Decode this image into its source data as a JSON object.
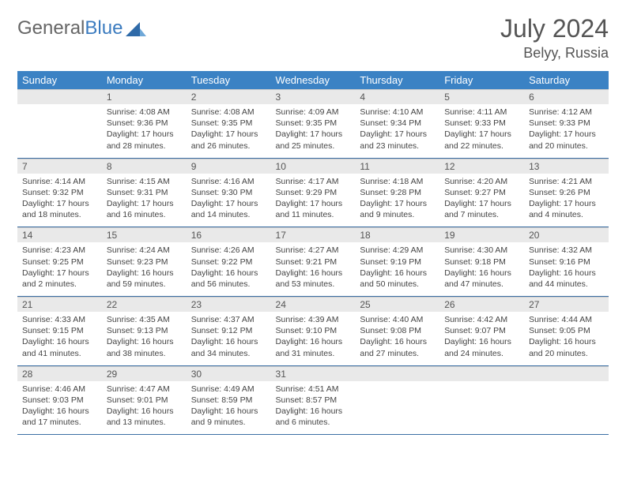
{
  "logo": {
    "text_general": "General",
    "text_blue": "Blue"
  },
  "header": {
    "month_title": "July 2024",
    "location": "Belyy, Russia"
  },
  "colors": {
    "header_bg": "#3b82c4",
    "header_text": "#ffffff",
    "daynum_bg": "#e9e9e9",
    "daynum_text": "#555555",
    "body_text": "#444444",
    "rule": "#3b6fa5",
    "logo_general": "#666666",
    "logo_blue": "#3b7bbf",
    "title_text": "#555555"
  },
  "day_names": [
    "Sunday",
    "Monday",
    "Tuesday",
    "Wednesday",
    "Thursday",
    "Friday",
    "Saturday"
  ],
  "layout": {
    "first_weekday_index": 1,
    "days_in_month": 31,
    "columns": 7,
    "rows": 5
  },
  "days": [
    {
      "n": 1,
      "sunrise": "4:08 AM",
      "sunset": "9:36 PM",
      "daylight": "17 hours and 28 minutes."
    },
    {
      "n": 2,
      "sunrise": "4:08 AM",
      "sunset": "9:35 PM",
      "daylight": "17 hours and 26 minutes."
    },
    {
      "n": 3,
      "sunrise": "4:09 AM",
      "sunset": "9:35 PM",
      "daylight": "17 hours and 25 minutes."
    },
    {
      "n": 4,
      "sunrise": "4:10 AM",
      "sunset": "9:34 PM",
      "daylight": "17 hours and 23 minutes."
    },
    {
      "n": 5,
      "sunrise": "4:11 AM",
      "sunset": "9:33 PM",
      "daylight": "17 hours and 22 minutes."
    },
    {
      "n": 6,
      "sunrise": "4:12 AM",
      "sunset": "9:33 PM",
      "daylight": "17 hours and 20 minutes."
    },
    {
      "n": 7,
      "sunrise": "4:14 AM",
      "sunset": "9:32 PM",
      "daylight": "17 hours and 18 minutes."
    },
    {
      "n": 8,
      "sunrise": "4:15 AM",
      "sunset": "9:31 PM",
      "daylight": "17 hours and 16 minutes."
    },
    {
      "n": 9,
      "sunrise": "4:16 AM",
      "sunset": "9:30 PM",
      "daylight": "17 hours and 14 minutes."
    },
    {
      "n": 10,
      "sunrise": "4:17 AM",
      "sunset": "9:29 PM",
      "daylight": "17 hours and 11 minutes."
    },
    {
      "n": 11,
      "sunrise": "4:18 AM",
      "sunset": "9:28 PM",
      "daylight": "17 hours and 9 minutes."
    },
    {
      "n": 12,
      "sunrise": "4:20 AM",
      "sunset": "9:27 PM",
      "daylight": "17 hours and 7 minutes."
    },
    {
      "n": 13,
      "sunrise": "4:21 AM",
      "sunset": "9:26 PM",
      "daylight": "17 hours and 4 minutes."
    },
    {
      "n": 14,
      "sunrise": "4:23 AM",
      "sunset": "9:25 PM",
      "daylight": "17 hours and 2 minutes."
    },
    {
      "n": 15,
      "sunrise": "4:24 AM",
      "sunset": "9:23 PM",
      "daylight": "16 hours and 59 minutes."
    },
    {
      "n": 16,
      "sunrise": "4:26 AM",
      "sunset": "9:22 PM",
      "daylight": "16 hours and 56 minutes."
    },
    {
      "n": 17,
      "sunrise": "4:27 AM",
      "sunset": "9:21 PM",
      "daylight": "16 hours and 53 minutes."
    },
    {
      "n": 18,
      "sunrise": "4:29 AM",
      "sunset": "9:19 PM",
      "daylight": "16 hours and 50 minutes."
    },
    {
      "n": 19,
      "sunrise": "4:30 AM",
      "sunset": "9:18 PM",
      "daylight": "16 hours and 47 minutes."
    },
    {
      "n": 20,
      "sunrise": "4:32 AM",
      "sunset": "9:16 PM",
      "daylight": "16 hours and 44 minutes."
    },
    {
      "n": 21,
      "sunrise": "4:33 AM",
      "sunset": "9:15 PM",
      "daylight": "16 hours and 41 minutes."
    },
    {
      "n": 22,
      "sunrise": "4:35 AM",
      "sunset": "9:13 PM",
      "daylight": "16 hours and 38 minutes."
    },
    {
      "n": 23,
      "sunrise": "4:37 AM",
      "sunset": "9:12 PM",
      "daylight": "16 hours and 34 minutes."
    },
    {
      "n": 24,
      "sunrise": "4:39 AM",
      "sunset": "9:10 PM",
      "daylight": "16 hours and 31 minutes."
    },
    {
      "n": 25,
      "sunrise": "4:40 AM",
      "sunset": "9:08 PM",
      "daylight": "16 hours and 27 minutes."
    },
    {
      "n": 26,
      "sunrise": "4:42 AM",
      "sunset": "9:07 PM",
      "daylight": "16 hours and 24 minutes."
    },
    {
      "n": 27,
      "sunrise": "4:44 AM",
      "sunset": "9:05 PM",
      "daylight": "16 hours and 20 minutes."
    },
    {
      "n": 28,
      "sunrise": "4:46 AM",
      "sunset": "9:03 PM",
      "daylight": "16 hours and 17 minutes."
    },
    {
      "n": 29,
      "sunrise": "4:47 AM",
      "sunset": "9:01 PM",
      "daylight": "16 hours and 13 minutes."
    },
    {
      "n": 30,
      "sunrise": "4:49 AM",
      "sunset": "8:59 PM",
      "daylight": "16 hours and 9 minutes."
    },
    {
      "n": 31,
      "sunrise": "4:51 AM",
      "sunset": "8:57 PM",
      "daylight": "16 hours and 6 minutes."
    }
  ],
  "labels": {
    "sunrise": "Sunrise:",
    "sunset": "Sunset:",
    "daylight": "Daylight:"
  }
}
